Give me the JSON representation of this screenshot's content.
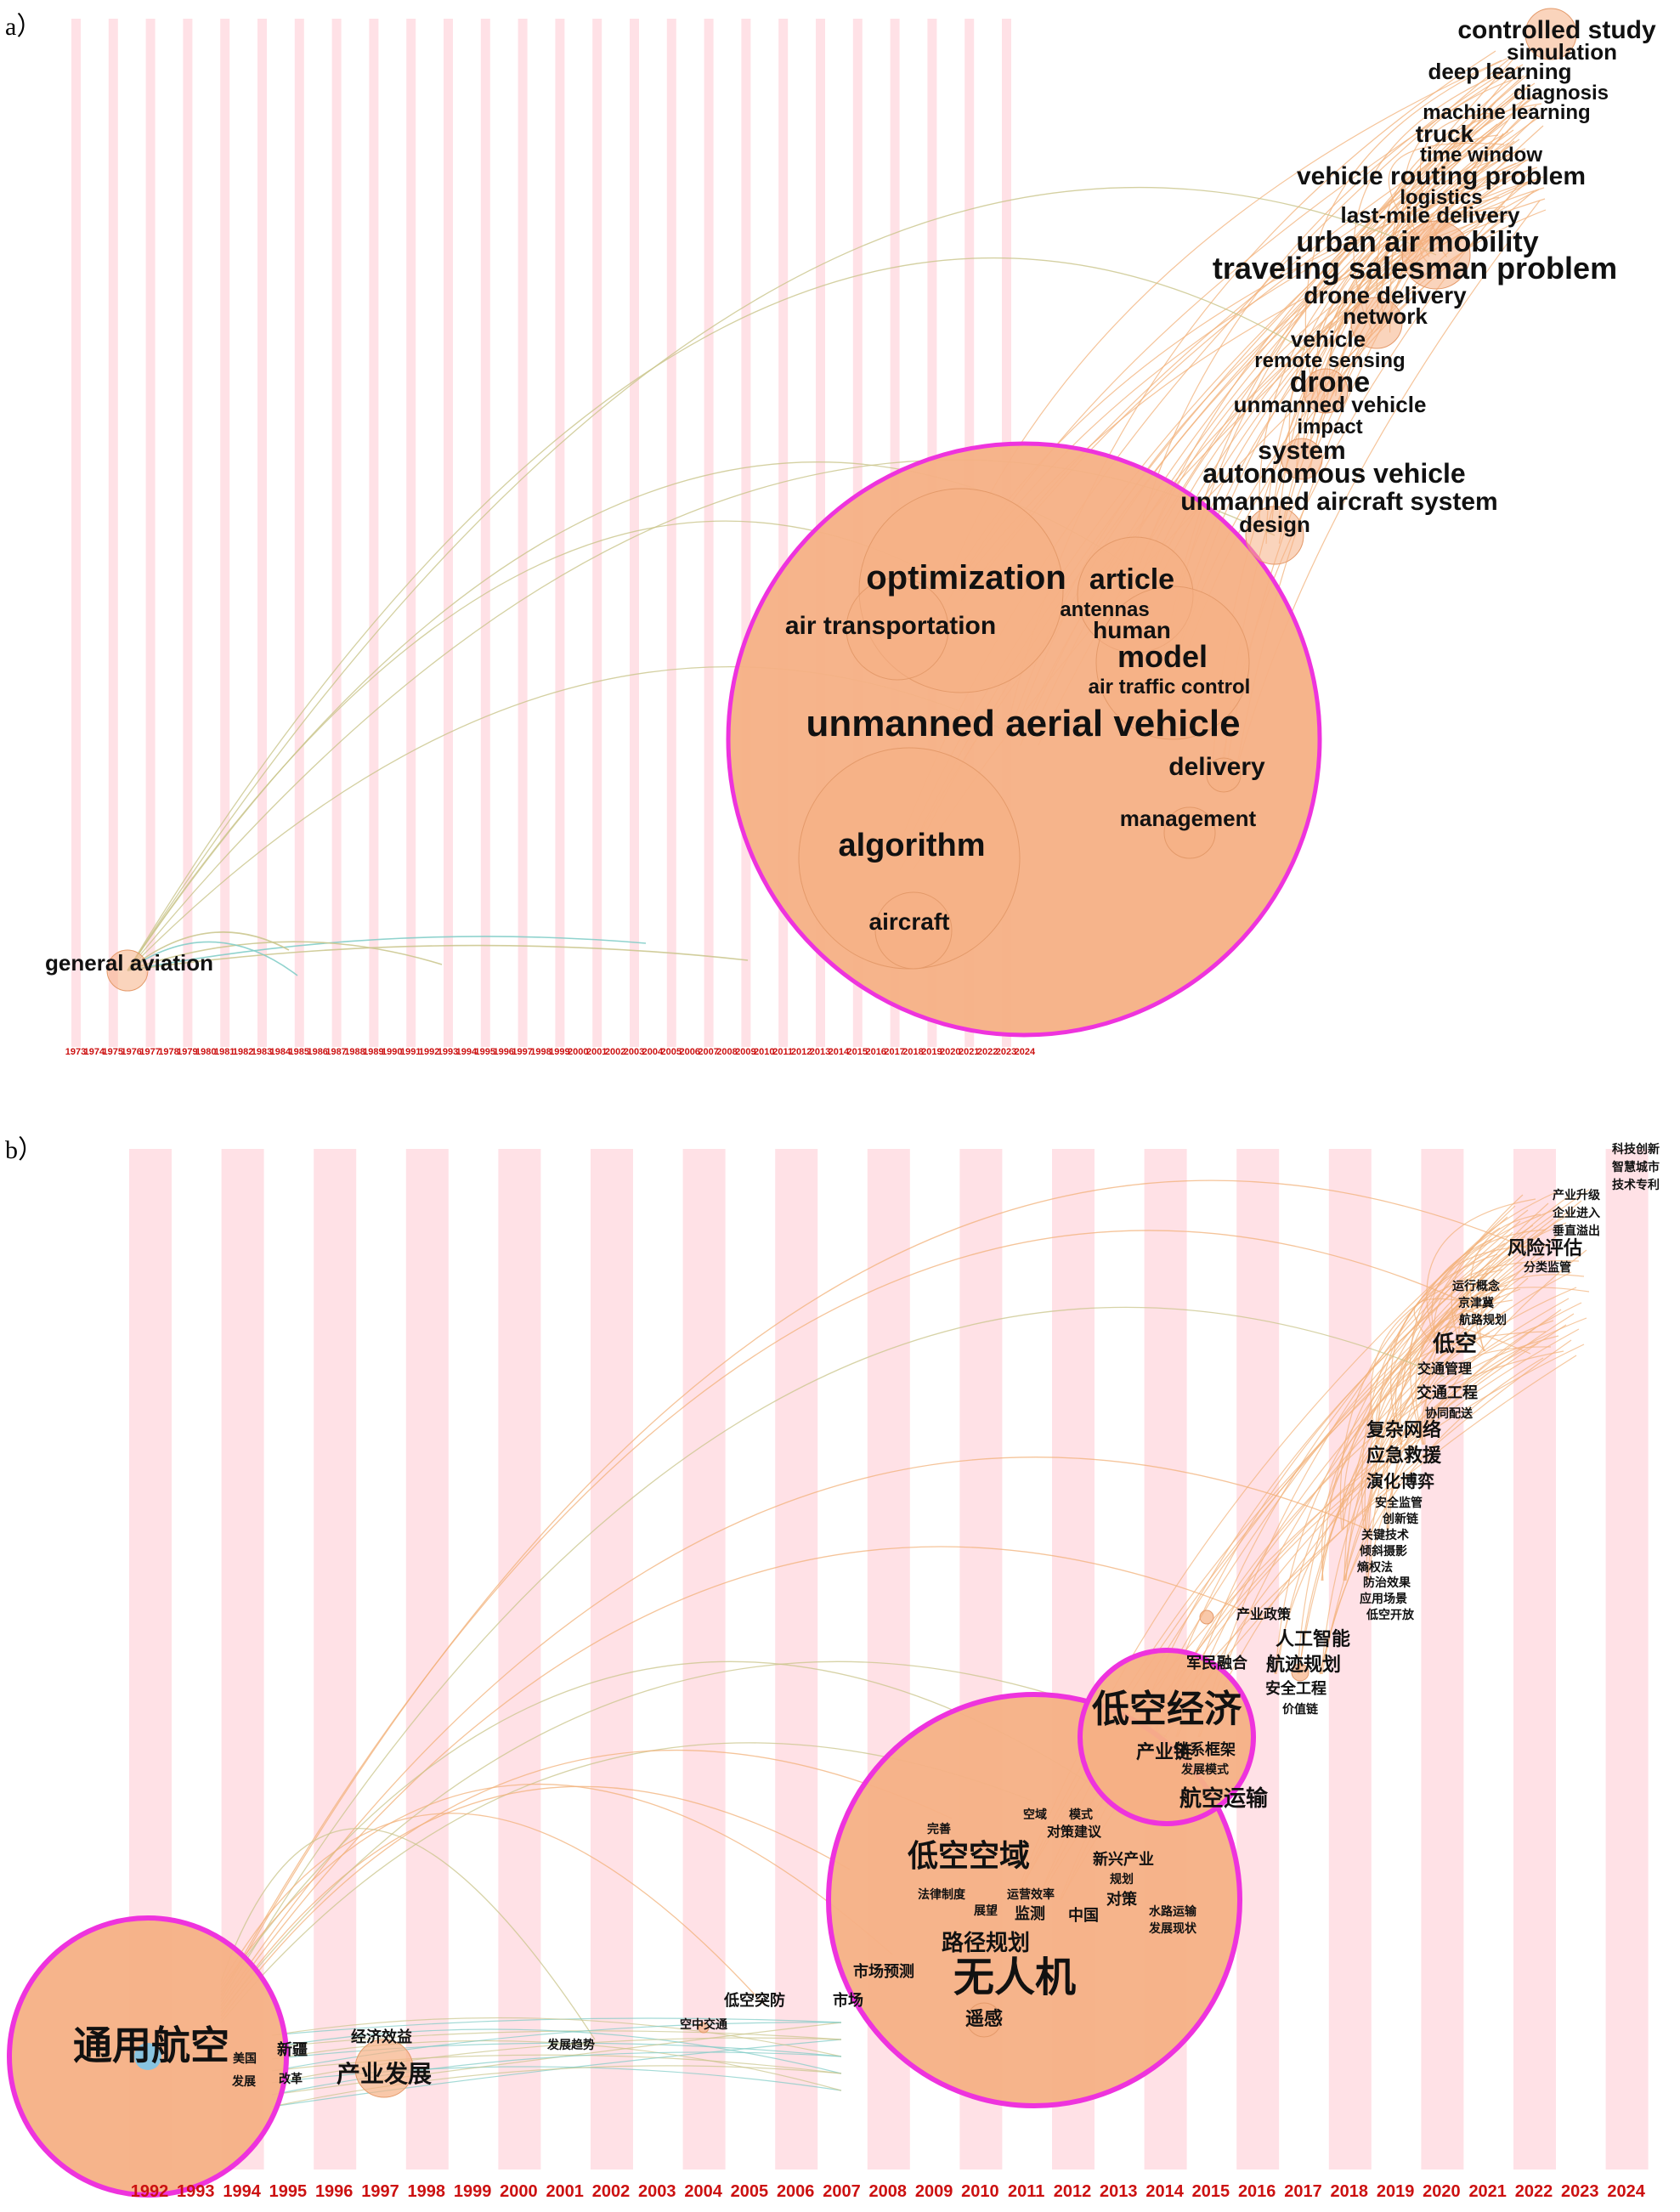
{
  "panel_a": {
    "label": "a）",
    "years": [
      "1973",
      "1974",
      "1975",
      "1976",
      "1977",
      "1978",
      "1979",
      "1980",
      "1981",
      "1982",
      "1983",
      "1984",
      "1985",
      "1986",
      "1987",
      "1988",
      "1989",
      "1990",
      "1991",
      "1992",
      "1993",
      "1994",
      "1995",
      "1996",
      "1997",
      "1998",
      "1999",
      "2000",
      "2001",
      "2002",
      "2003",
      "2004",
      "2005",
      "2006",
      "2007",
      "2008",
      "2009",
      "2010",
      "2011",
      "2012",
      "2013",
      "2014",
      "2015",
      "2016",
      "2017",
      "2018",
      "2019",
      "2020",
      "2021",
      "2022",
      "2023",
      "2024"
    ],
    "keywords": [
      {
        "text": "controlled study",
        "size": 30
      },
      {
        "text": "simulation",
        "size": 26
      },
      {
        "text": "deep learning",
        "size": 26
      },
      {
        "text": "diagnosis",
        "size": 24
      },
      {
        "text": "machine learning",
        "size": 24
      },
      {
        "text": "truck",
        "size": 28
      },
      {
        "text": "time window",
        "size": 24
      },
      {
        "text": "vehicle routing problem",
        "size": 30
      },
      {
        "text": "logistics",
        "size": 24
      },
      {
        "text": "last-mile delivery",
        "size": 26
      },
      {
        "text": "urban air mobility",
        "size": 34
      },
      {
        "text": "traveling salesman problem",
        "size": 36
      },
      {
        "text": "drone delivery",
        "size": 28
      },
      {
        "text": "network",
        "size": 26
      },
      {
        "text": "vehicle",
        "size": 26
      },
      {
        "text": "remote sensing",
        "size": 24
      },
      {
        "text": "drone",
        "size": 34
      },
      {
        "text": "unmanned vehicle",
        "size": 26
      },
      {
        "text": "impact",
        "size": 24
      },
      {
        "text": "system",
        "size": 30
      },
      {
        "text": "autonomous vehicle",
        "size": 32
      },
      {
        "text": "unmanned aircraft system",
        "size": 30
      },
      {
        "text": "design",
        "size": 26
      },
      {
        "text": "optimization",
        "size": 40
      },
      {
        "text": "article",
        "size": 34
      },
      {
        "text": "antennas",
        "size": 24
      },
      {
        "text": "air transportation",
        "size": 30
      },
      {
        "text": "human",
        "size": 28
      },
      {
        "text": "model",
        "size": 36
      },
      {
        "text": "air traffic control",
        "size": 24
      },
      {
        "text": "unmanned aerial vehicle",
        "size": 44
      },
      {
        "text": "delivery",
        "size": 30
      },
      {
        "text": "management",
        "size": 26
      },
      {
        "text": "algorithm",
        "size": 38
      },
      {
        "text": "aircraft",
        "size": 28
      },
      {
        "text": "general aviation",
        "size": 26
      }
    ]
  },
  "panel_b": {
    "label": "b）",
    "years": [
      "1992",
      "1993",
      "1994",
      "1995",
      "1996",
      "1997",
      "1998",
      "1999",
      "2000",
      "2001",
      "2002",
      "2003",
      "2004",
      "2005",
      "2006",
      "2007",
      "2008",
      "2009",
      "2010",
      "2011",
      "2012",
      "2013",
      "2014",
      "2015",
      "2016",
      "2017",
      "2018",
      "2019",
      "2020",
      "2021",
      "2022",
      "2023",
      "2024"
    ],
    "keywords": [
      {
        "text": "科技创新",
        "size": 14
      },
      {
        "text": "智慧城市",
        "size": 14
      },
      {
        "text": "技术专利",
        "size": 14
      },
      {
        "text": "产业升级",
        "size": 14
      },
      {
        "text": "企业进入",
        "size": 14
      },
      {
        "text": "垂直溢出",
        "size": 14
      },
      {
        "text": "风险评估",
        "size": 22
      },
      {
        "text": "分类监管",
        "size": 14
      },
      {
        "text": "运行概念",
        "size": 14
      },
      {
        "text": "京津冀",
        "size": 14
      },
      {
        "text": "航路规划",
        "size": 14
      },
      {
        "text": "低空",
        "size": 26
      },
      {
        "text": "交通管理",
        "size": 16
      },
      {
        "text": "交通工程",
        "size": 18
      },
      {
        "text": "协同配送",
        "size": 14
      },
      {
        "text": "复杂网络",
        "size": 22
      },
      {
        "text": "应急救援",
        "size": 22
      },
      {
        "text": "演化博弈",
        "size": 20
      },
      {
        "text": "安全监管",
        "size": 14
      },
      {
        "text": "创新链",
        "size": 14
      },
      {
        "text": "关键技术",
        "size": 14
      },
      {
        "text": "倾斜摄影",
        "size": 14
      },
      {
        "text": "熵权法",
        "size": 14
      },
      {
        "text": "防治效果",
        "size": 14
      },
      {
        "text": "应用场景",
        "size": 14
      },
      {
        "text": "低空开放",
        "size": 14
      },
      {
        "text": "产业政策",
        "size": 16
      },
      {
        "text": "人工智能",
        "size": 22
      },
      {
        "text": "航迹规划",
        "size": 22
      },
      {
        "text": "安全工程",
        "size": 18
      },
      {
        "text": "价值链",
        "size": 14
      },
      {
        "text": "军民融合",
        "size": 18
      },
      {
        "text": "低空经济",
        "size": 44
      },
      {
        "text": "产业链",
        "size": 22
      },
      {
        "text": "体系框架",
        "size": 18
      },
      {
        "text": "发展模式",
        "size": 14
      },
      {
        "text": "航空运输",
        "size": 26
      },
      {
        "text": "空域",
        "size": 14
      },
      {
        "text": "模式",
        "size": 14
      },
      {
        "text": "完善",
        "size": 14
      },
      {
        "text": "对策建议",
        "size": 16
      },
      {
        "text": "低空空域",
        "size": 36
      },
      {
        "text": "新兴产业",
        "size": 18
      },
      {
        "text": "规划",
        "size": 14
      },
      {
        "text": "法律制度",
        "size": 14
      },
      {
        "text": "运营效率",
        "size": 14
      },
      {
        "text": "对策",
        "size": 18
      },
      {
        "text": "展望",
        "size": 14
      },
      {
        "text": "监测",
        "size": 18
      },
      {
        "text": "中国",
        "size": 18
      },
      {
        "text": "水路运输",
        "size": 14
      },
      {
        "text": "发展现状",
        "size": 14
      },
      {
        "text": "路径规划",
        "size": 26
      },
      {
        "text": "市场预测",
        "size": 18
      },
      {
        "text": "无人机",
        "size": 48
      },
      {
        "text": "市场",
        "size": 18
      },
      {
        "text": "低空突防",
        "size": 18
      },
      {
        "text": "遥感",
        "size": 22
      },
      {
        "text": "空中交通",
        "size": 14
      },
      {
        "text": "发展趋势",
        "size": 14
      },
      {
        "text": "经济效益",
        "size": 18
      },
      {
        "text": "通用航空",
        "size": 46
      },
      {
        "text": "新疆",
        "size": 18
      },
      {
        "text": "美国",
        "size": 14
      },
      {
        "text": "产业发展",
        "size": 28
      },
      {
        "text": "发展",
        "size": 14
      },
      {
        "text": "改革",
        "size": 14
      }
    ]
  },
  "colors": {
    "stripe": "#ffe1e6",
    "node_fill": "#f6b085",
    "ring": "#ee33dd",
    "link_orange": "#f2b078",
    "link_green": "#c9c48a",
    "link_teal": "#7ccbc5",
    "year_text": "#cc1111"
  }
}
